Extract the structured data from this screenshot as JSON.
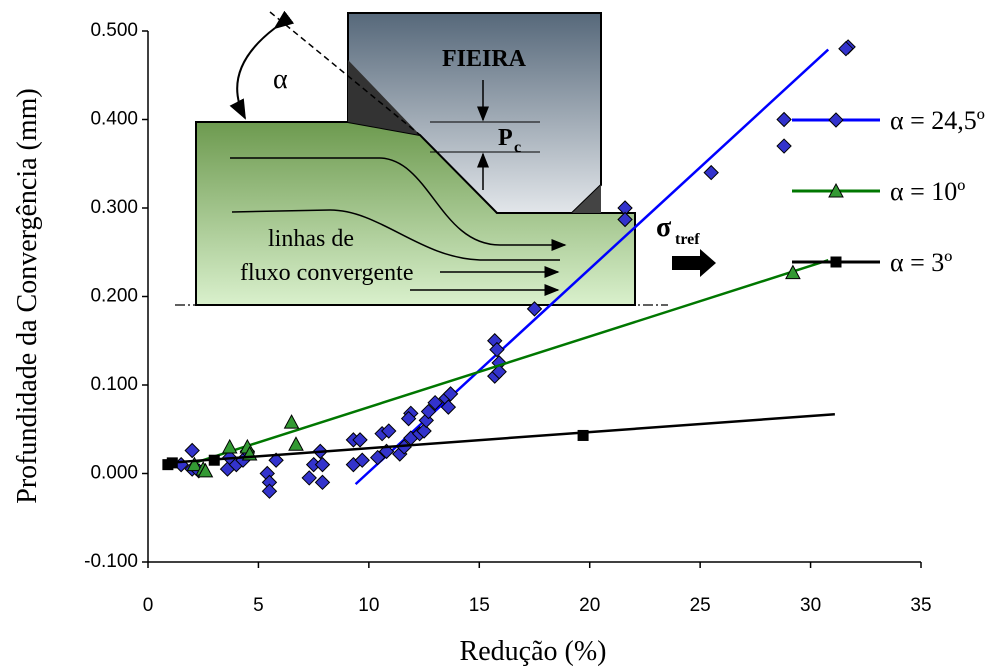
{
  "chart_data": {
    "type": "scatter",
    "x_label": "Redução (%)",
    "y_label": "Profundidade da Convergência (mm)",
    "xlim": [
      0,
      35
    ],
    "xticks": [
      0,
      5,
      10,
      15,
      20,
      25,
      30,
      35
    ],
    "ylim": [
      -0.1,
      0.5
    ],
    "yticks": [
      {
        "value": -0.1,
        "label": "-0.100"
      },
      {
        "value": 0,
        "label": "0.000"
      },
      {
        "value": 0.1,
        "label": "0.100"
      },
      {
        "value": 0.2,
        "label": "0.200"
      },
      {
        "value": 0.3,
        "label": "0.300"
      },
      {
        "value": 0.4,
        "label": "0.400"
      },
      {
        "value": 0.5,
        "label": "0.500"
      }
    ],
    "grid": false,
    "legend": "right",
    "annotations": [
      "FIEIRA",
      "α",
      "P",
      "c",
      "linhas de",
      "fluxo convergente",
      "σ",
      "tref"
    ],
    "series": [
      {
        "name": "α = 24,5º",
        "color": "#0000ff",
        "marker": "diamond",
        "marker_color": "#3333cc",
        "x": [
          2.0,
          2.0,
          2.3,
          1.5,
          3.6,
          3.7,
          4.0,
          4.3,
          4.5,
          5.4,
          5.5,
          5.5,
          5.8,
          7.3,
          7.5,
          7.8,
          7.9,
          7.9,
          9.3,
          9.3,
          9.6,
          9.7,
          10.4,
          10.6,
          10.9,
          10.8,
          11.4,
          11.6,
          11.9,
          11.8,
          11.9,
          12.3,
          12.5,
          12.6,
          12.7,
          13.0,
          13.5,
          13.6,
          13.7,
          15.7,
          15.8,
          15.9,
          15.7,
          15.9,
          17.5,
          21.6,
          21.6,
          25.5,
          28.8,
          28.8,
          31.7,
          31.6
        ],
        "values": [
          0.026,
          0.005,
          0.003,
          0.01,
          0.005,
          0.018,
          0.01,
          0.015,
          0.025,
          0.0,
          -0.01,
          -0.02,
          0.015,
          -0.005,
          0.01,
          0.025,
          0.01,
          -0.01,
          0.038,
          0.01,
          0.038,
          0.015,
          0.018,
          0.045,
          0.048,
          0.025,
          0.022,
          0.03,
          0.068,
          0.062,
          0.04,
          0.045,
          0.048,
          0.06,
          0.07,
          0.08,
          0.085,
          0.075,
          0.09,
          0.15,
          0.14,
          0.125,
          0.11,
          0.115,
          0.186,
          0.3,
          0.287,
          0.34,
          0.4,
          0.37,
          0.482,
          0.48
        ],
        "trendline": {
          "x": [
            9.4,
            30.8
          ],
          "y": [
            -0.012,
            0.479
          ]
        }
      },
      {
        "name": "α = 10º",
        "color": "#007700",
        "marker": "triangle",
        "marker_color": "#339933",
        "x": [
          2.1,
          2.5,
          2.6,
          3.7,
          4.5,
          4.6,
          6.5,
          6.7,
          29.2
        ],
        "values": [
          0.01,
          0.005,
          0.003,
          0.03,
          0.03,
          0.022,
          0.058,
          0.033,
          0.227
        ],
        "trendline": {
          "x": [
            2.1,
            30.8
          ],
          "y": [
            0.012,
            0.241
          ]
        }
      },
      {
        "name": "α = 3º",
        "color": "#000000",
        "marker": "square",
        "marker_color": "#000000",
        "x": [
          0.9,
          1.1,
          3.0,
          19.7
        ],
        "values": [
          0.01,
          0.012,
          0.015,
          0.043
        ],
        "trendline": {
          "x": [
            0.9,
            31.1
          ],
          "y": [
            0.012,
            0.067
          ]
        }
      }
    ]
  }
}
